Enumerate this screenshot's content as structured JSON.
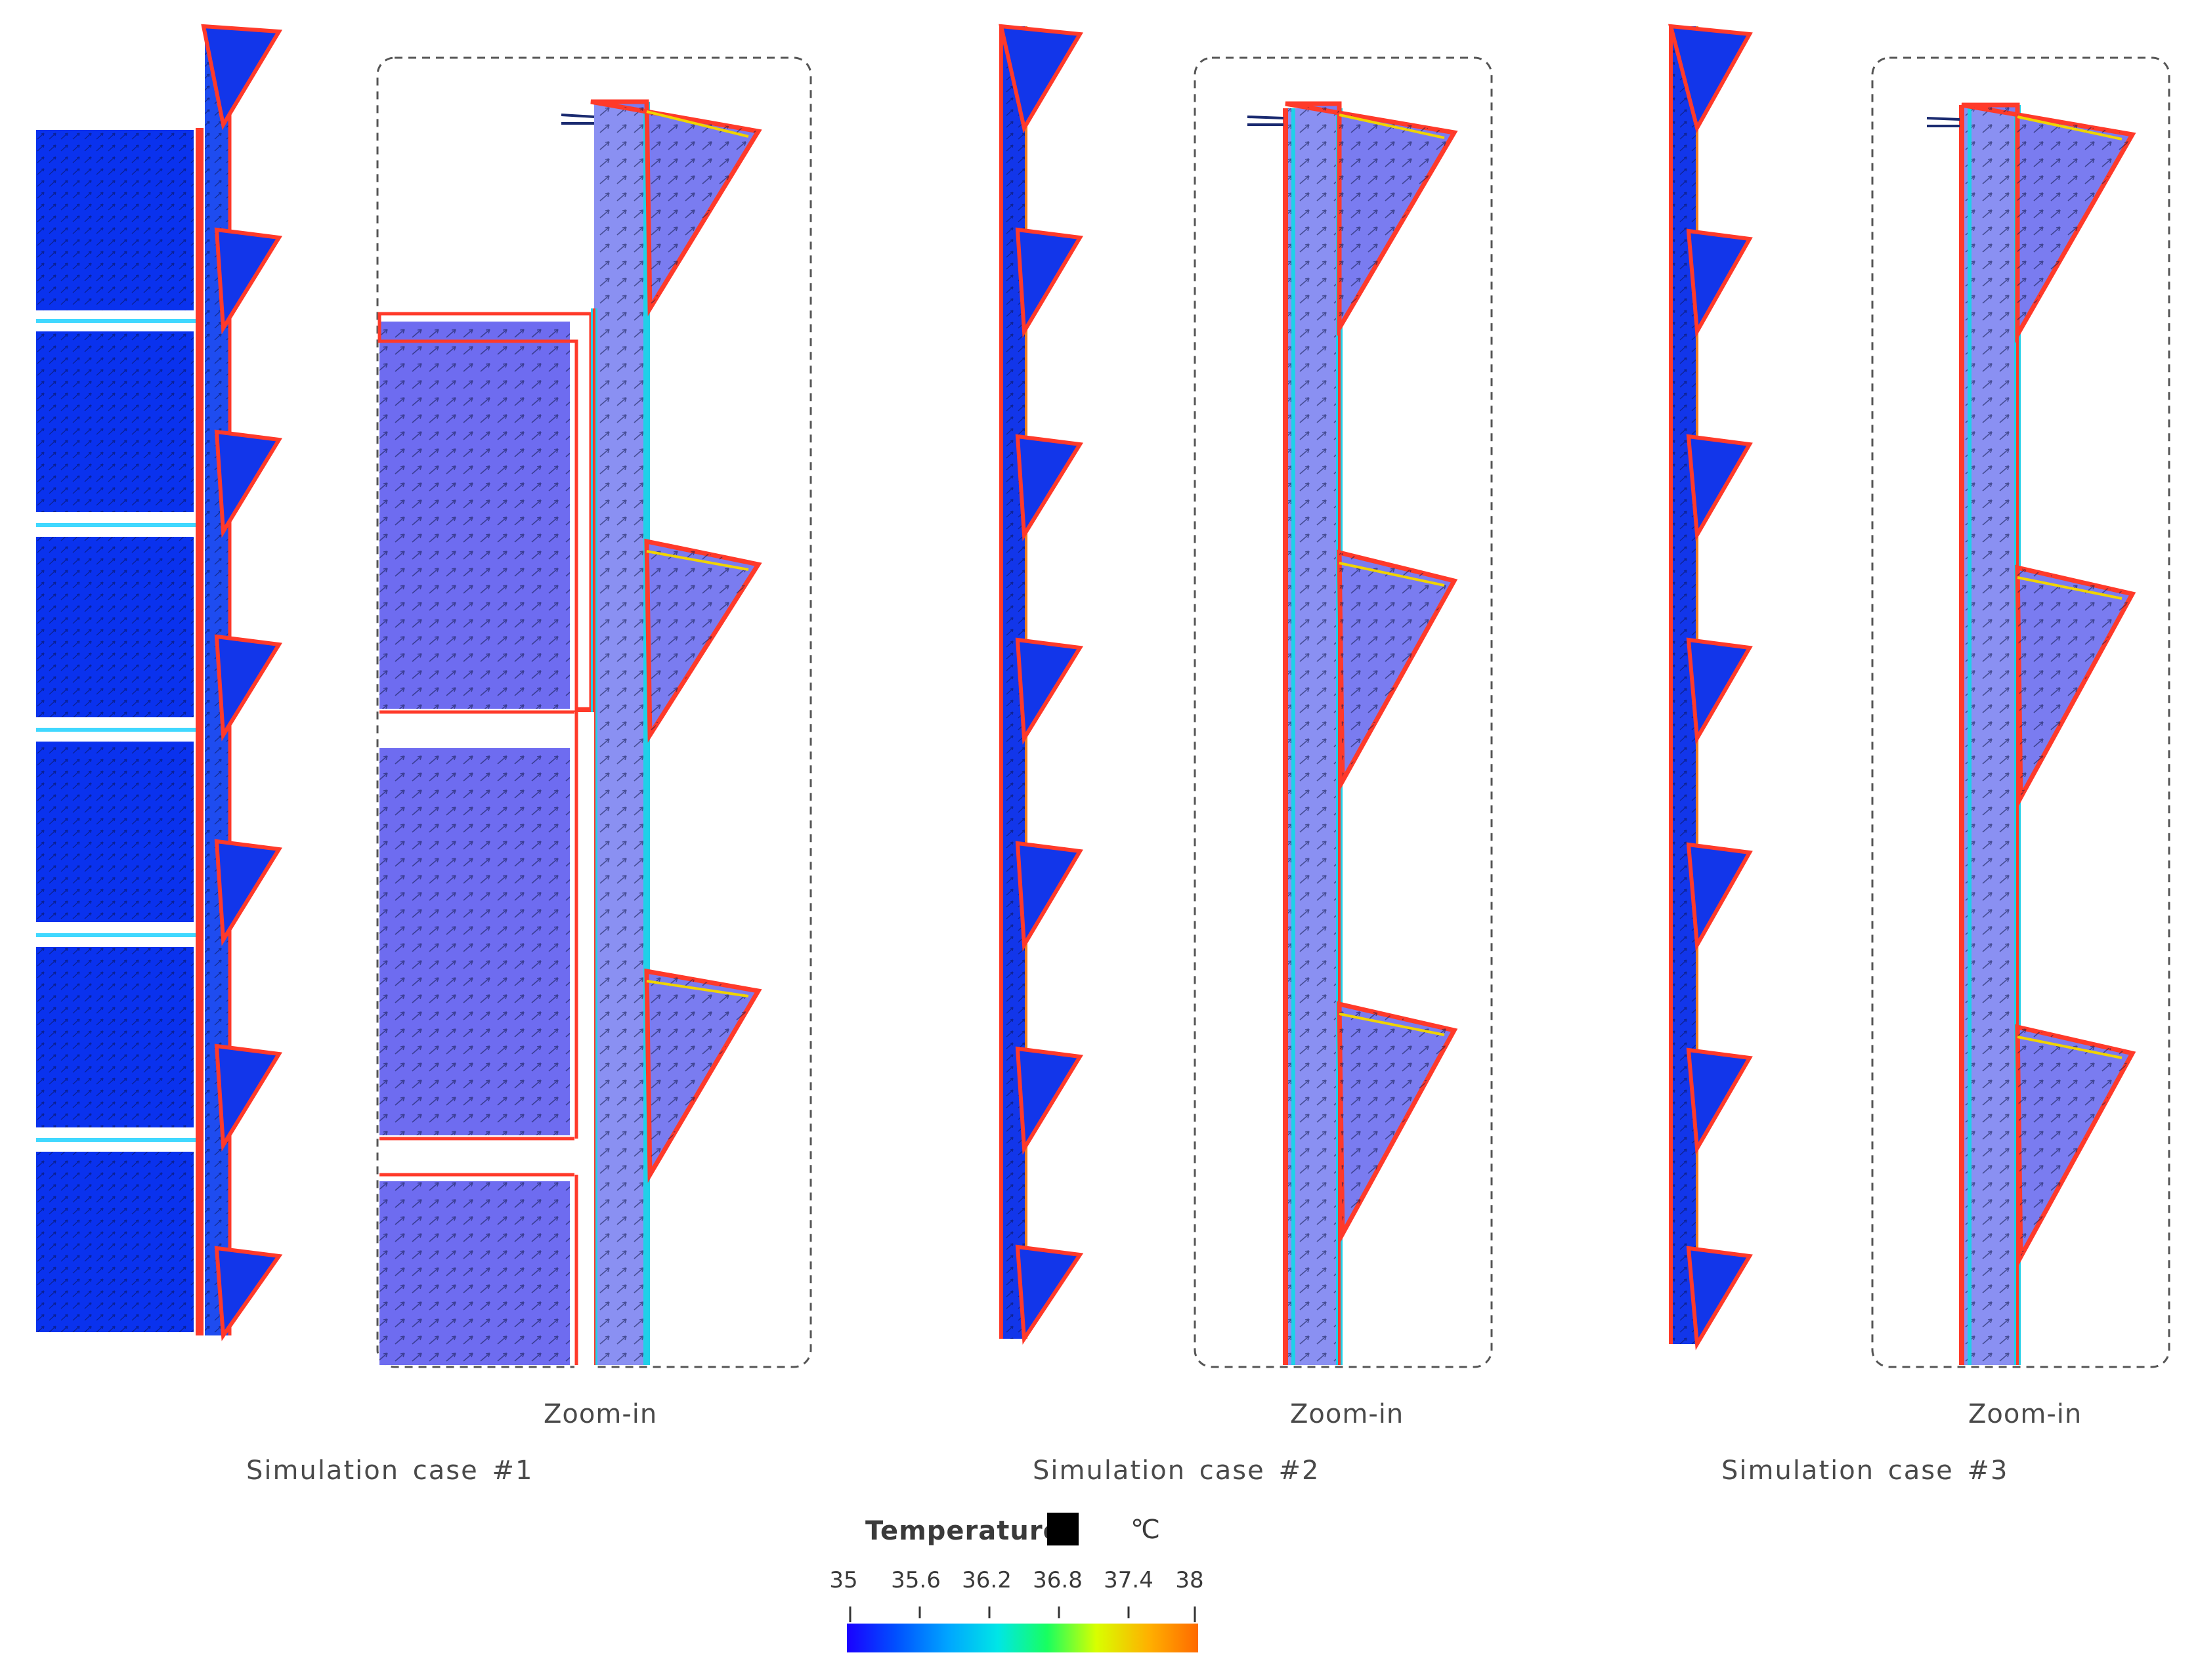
{
  "panels": [
    {
      "case_label": "Simulation case  #1",
      "zoom_label": "Zoom-in"
    },
    {
      "case_label": "Simulation case  #2",
      "zoom_label": "Zoom-in"
    },
    {
      "case_label": "Simulation case  #3",
      "zoom_label": "Zoom-in"
    }
  ],
  "colorbar": {
    "title": "Temperature",
    "unit": "℃",
    "ticks": [
      "35",
      "35.6",
      "36.2",
      "36.8",
      "37.4",
      "38"
    ],
    "range": [
      35,
      38
    ],
    "colors": [
      "#1a00ff",
      "#0050ff",
      "#00a6ff",
      "#00e6e6",
      "#18ff60",
      "#d8ff00",
      "#ffb000",
      "#ff6a00"
    ]
  },
  "colors": {
    "cold_fill": "#0a32ee",
    "zoom_fill": "#6e6cf0",
    "hot_edge": "#ff3a2a",
    "warm_edge": "#f0d400",
    "mid_edge": "#20d0e8",
    "frame_dash": "#555555"
  }
}
